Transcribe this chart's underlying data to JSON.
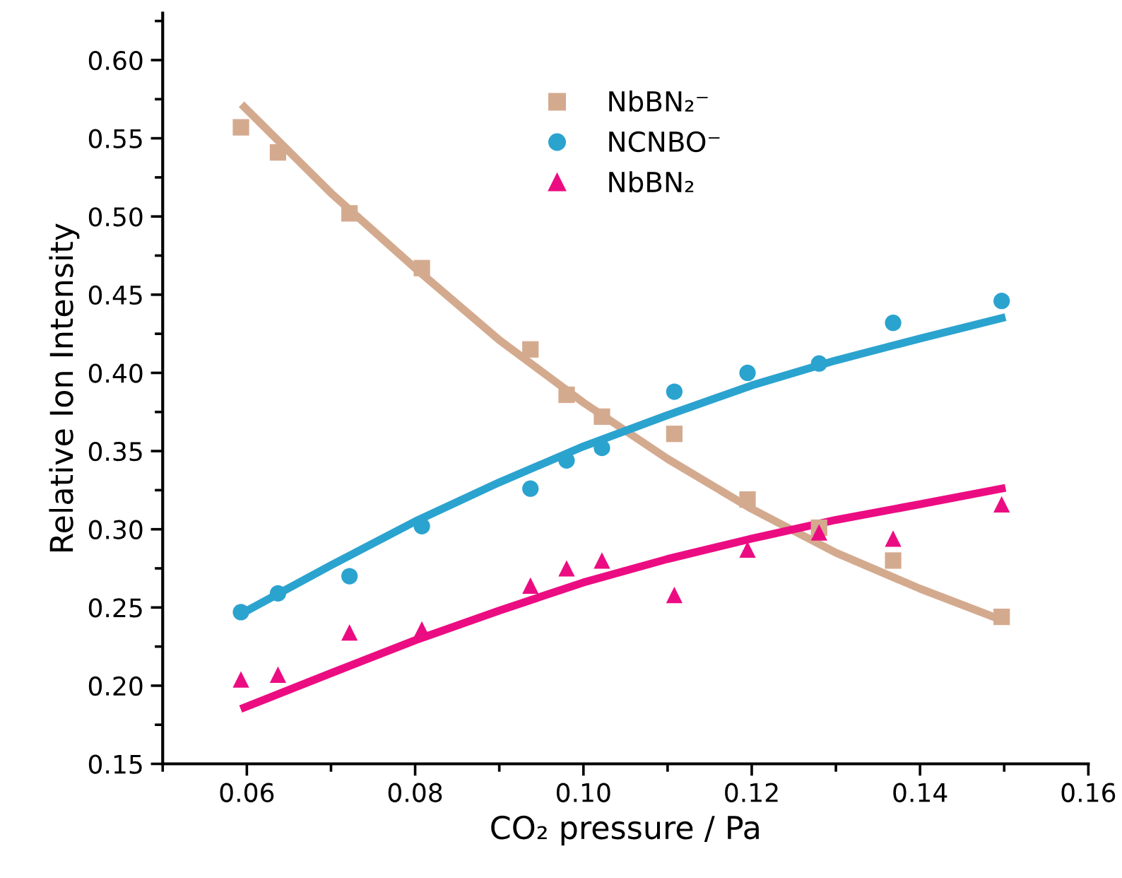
{
  "chart_data": {
    "type": "scatter",
    "xlabel": "CO₂ pressure / Pa",
    "ylabel": "Relative Ion Intensity",
    "x": [
      0.0593,
      0.0637,
      0.0722,
      0.0808,
      0.0937,
      0.098,
      0.1022,
      0.1108,
      0.1195,
      0.128,
      0.1368,
      0.1497
    ],
    "series": [
      {
        "name": "NbBN₂⁻",
        "color": "#d4aa8f",
        "marker": "square",
        "values": [
          0.557,
          0.541,
          0.502,
          0.467,
          0.415,
          0.386,
          0.372,
          0.361,
          0.319,
          0.301,
          0.28,
          0.244
        ]
      },
      {
        "name": "NCNBO⁻",
        "color": "#2ba3cf",
        "marker": "circle",
        "values": [
          0.247,
          0.259,
          0.27,
          0.302,
          0.326,
          0.344,
          0.352,
          0.388,
          0.4,
          0.406,
          0.432,
          0.446
        ]
      },
      {
        "name": "NbBN₂",
        "color": "#ec0c82",
        "marker": "triangle",
        "values": [
          0.204,
          0.207,
          0.234,
          0.236,
          0.264,
          0.275,
          0.28,
          0.258,
          0.287,
          0.298,
          0.294,
          0.316
        ]
      },
      {
        "type": "line",
        "color": "#d4aa8f",
        "x": [
          0.0597,
          0.07,
          0.08,
          0.09,
          0.1,
          0.11,
          0.12,
          0.13,
          0.14,
          0.1497
        ],
        "values": [
          0.57,
          0.515,
          0.467,
          0.421,
          0.381,
          0.345,
          0.313,
          0.285,
          0.262,
          0.242
        ]
      },
      {
        "type": "line",
        "color": "#2ba3cf",
        "x": [
          0.0597,
          0.07,
          0.08,
          0.09,
          0.1,
          0.11,
          0.12,
          0.13,
          0.14,
          0.1497
        ],
        "values": [
          0.247,
          0.277,
          0.305,
          0.33,
          0.353,
          0.373,
          0.392,
          0.408,
          0.422,
          0.435
        ]
      },
      {
        "type": "line",
        "color": "#ec0c82",
        "x": [
          0.0597,
          0.07,
          0.08,
          0.09,
          0.1,
          0.11,
          0.12,
          0.13,
          0.14,
          0.1497
        ],
        "values": [
          0.186,
          0.208,
          0.229,
          0.248,
          0.266,
          0.281,
          0.294,
          0.306,
          0.316,
          0.326
        ]
      }
    ],
    "xlim": [
      0.05,
      0.16
    ],
    "ylim": [
      0.15,
      0.63
    ],
    "xticks": [
      {
        "value": 0.06,
        "label": "0.06"
      },
      {
        "value": 0.08,
        "label": "0.08"
      },
      {
        "value": 0.1,
        "label": "0.10"
      },
      {
        "value": 0.12,
        "label": "0.12"
      },
      {
        "value": 0.14,
        "label": "0.14"
      },
      {
        "value": 0.16,
        "label": "0.16"
      }
    ],
    "yticks": [
      {
        "value": 0.15,
        "label": "0.15"
      },
      {
        "value": 0.2,
        "label": "0.20"
      },
      {
        "value": 0.25,
        "label": "0.25"
      },
      {
        "value": 0.3,
        "label": "0.30"
      },
      {
        "value": 0.35,
        "label": "0.35"
      },
      {
        "value": 0.4,
        "label": "0.40"
      },
      {
        "value": 0.45,
        "label": "0.45"
      },
      {
        "value": 0.5,
        "label": "0.50"
      },
      {
        "value": 0.55,
        "label": "0.55"
      },
      {
        "value": 0.6,
        "label": "0.60"
      }
    ],
    "grid": false,
    "legend": "top"
  }
}
